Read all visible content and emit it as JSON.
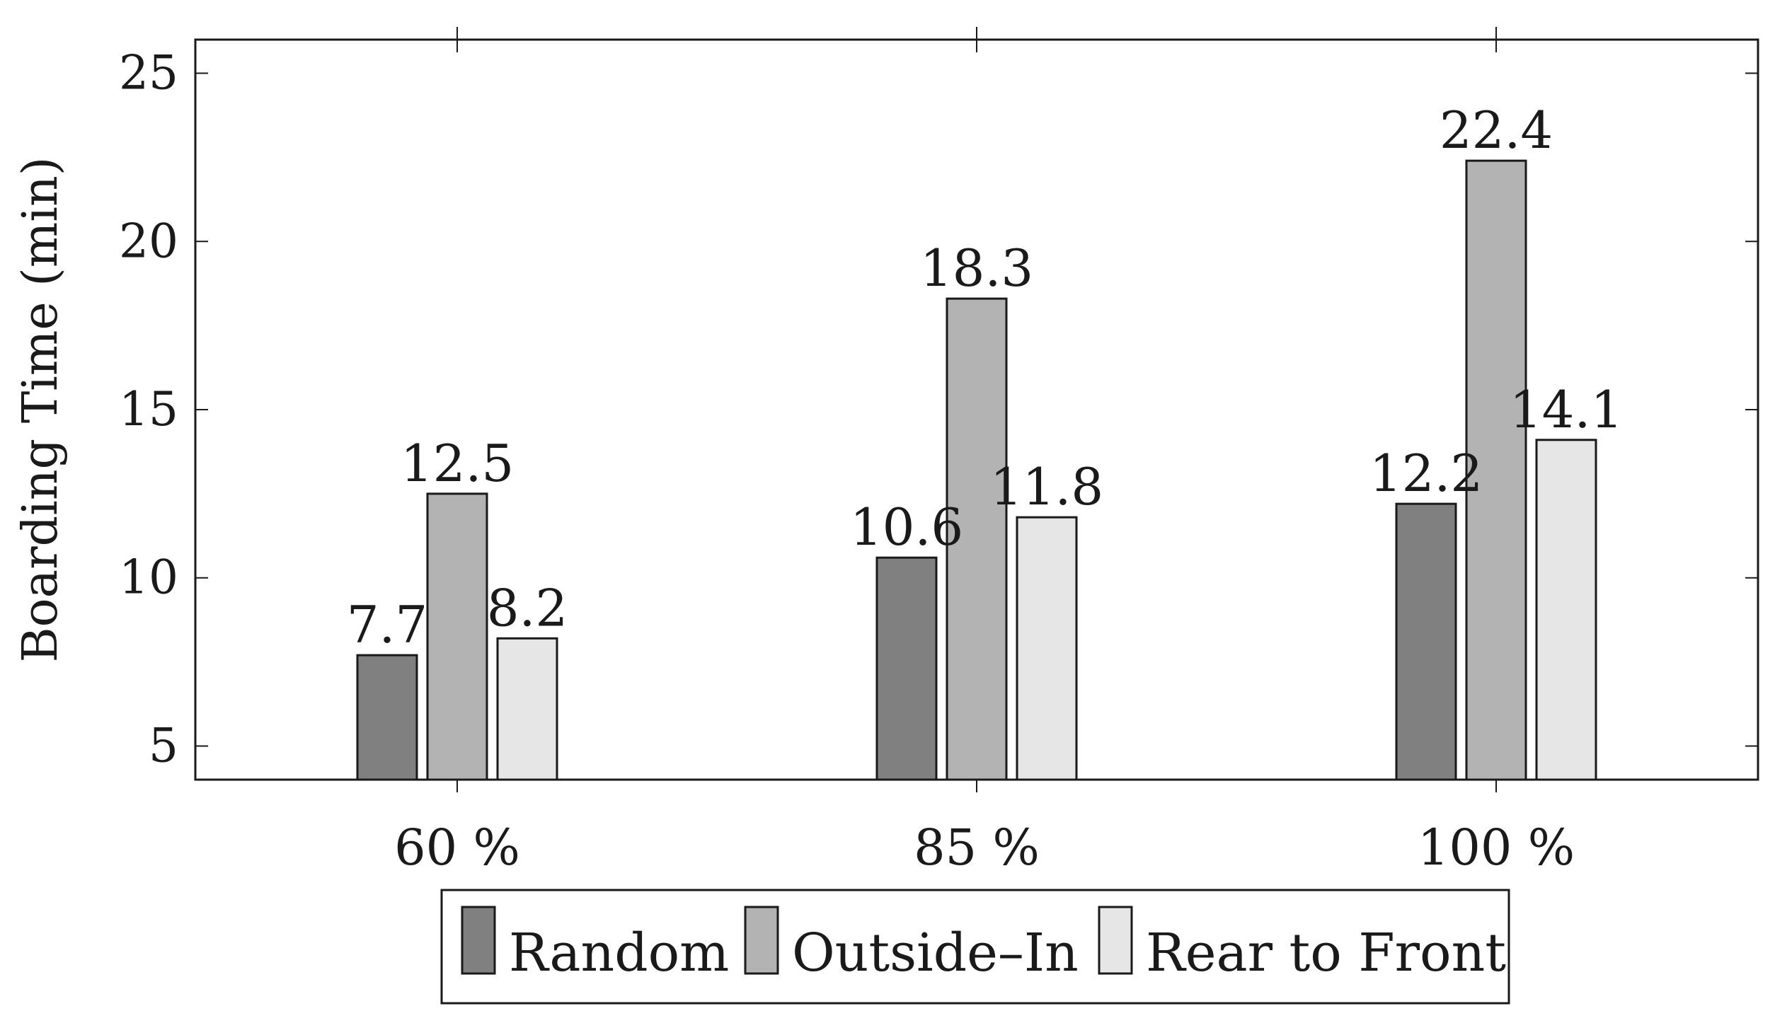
{
  "chart_data": {
    "type": "bar",
    "title": "",
    "xlabel": "",
    "ylabel": "Boarding Time (min)",
    "categories": [
      "60 %",
      "85 %",
      "100 %"
    ],
    "series": [
      {
        "name": "Random",
        "values": [
          7.7,
          10.6,
          12.2
        ],
        "color": "#808080"
      },
      {
        "name": "Outside–In",
        "values": [
          12.5,
          18.3,
          22.4
        ],
        "color": "#b3b3b3"
      },
      {
        "name": "Rear to Front",
        "values": [
          8.2,
          11.8,
          14.1
        ],
        "color": "#e6e6e6"
      }
    ],
    "data_labels": [
      [
        "7.7",
        "10.6",
        "12.2"
      ],
      [
        "12.5",
        "18.3",
        "22.4"
      ],
      [
        "8.2",
        "11.8",
        "14.1"
      ]
    ],
    "yticks": [
      5,
      10,
      15,
      20,
      25
    ],
    "ytick_labels": [
      "5",
      "10",
      "15",
      "20",
      "25"
    ],
    "ylim": [
      4,
      26
    ],
    "grid": false,
    "legend_position": "bottom-center",
    "bar_outline_color": "#1a1a1a"
  }
}
